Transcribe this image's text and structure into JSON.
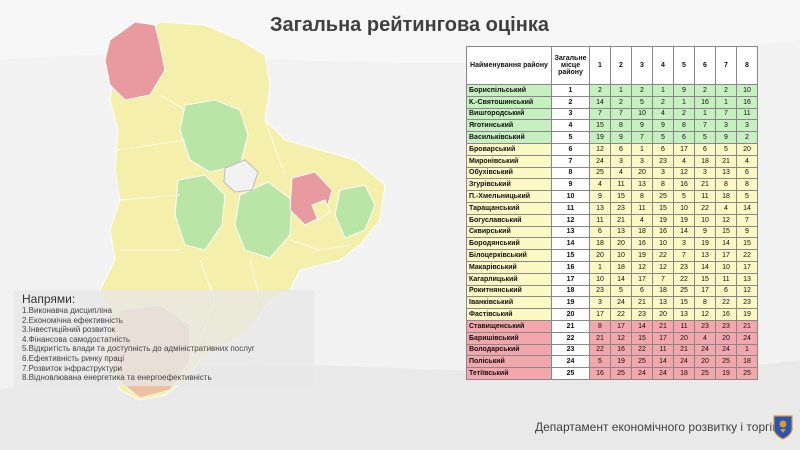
{
  "title": "Загальна рейтингова оцінка",
  "table": {
    "headers": {
      "name": "Найменування району",
      "place": "Загальне місце району",
      "directions": [
        "1",
        "2",
        "3",
        "4",
        "5",
        "6",
        "7",
        "8"
      ]
    },
    "rows": [
      {
        "name": "Бориспільський",
        "place": "1",
        "group": "green",
        "scores": [
          "2",
          "1",
          "2",
          "1",
          "9",
          "2",
          "2",
          "10"
        ]
      },
      {
        "name": "К.-Святошинський",
        "place": "2",
        "group": "green",
        "scores": [
          "14",
          "2",
          "5",
          "2",
          "1",
          "16",
          "1",
          "16"
        ]
      },
      {
        "name": "Вишгородський",
        "place": "3",
        "group": "green",
        "scores": [
          "7",
          "7",
          "10",
          "4",
          "2",
          "1",
          "7",
          "11"
        ]
      },
      {
        "name": "Яготинський",
        "place": "4",
        "group": "green",
        "scores": [
          "15",
          "8",
          "9",
          "9",
          "8",
          "7",
          "3",
          "3"
        ]
      },
      {
        "name": "Васильківський",
        "place": "5",
        "group": "green",
        "scores": [
          "19",
          "9",
          "7",
          "5",
          "6",
          "5",
          "9",
          "2"
        ]
      },
      {
        "name": "Броварський",
        "place": "6",
        "group": "yellow",
        "scores": [
          "12",
          "6",
          "1",
          "6",
          "17",
          "6",
          "5",
          "20"
        ]
      },
      {
        "name": "Миронівський",
        "place": "7",
        "group": "yellow",
        "scores": [
          "24",
          "3",
          "3",
          "23",
          "4",
          "18",
          "21",
          "4"
        ]
      },
      {
        "name": "Обухівський",
        "place": "8",
        "group": "yellow",
        "scores": [
          "25",
          "4",
          "20",
          "3",
          "12",
          "3",
          "13",
          "6"
        ]
      },
      {
        "name": "Згурівський",
        "place": "9",
        "group": "yellow",
        "scores": [
          "4",
          "11",
          "13",
          "8",
          "16",
          "21",
          "8",
          "8"
        ]
      },
      {
        "name": "П.-Хмельницький",
        "place": "10",
        "group": "yellow",
        "scores": [
          "9",
          "15",
          "8",
          "25",
          "5",
          "11",
          "18",
          "5"
        ]
      },
      {
        "name": "Таращанський",
        "place": "11",
        "group": "yellow",
        "scores": [
          "13",
          "23",
          "11",
          "15",
          "10",
          "22",
          "4",
          "14"
        ]
      },
      {
        "name": "Богуславський",
        "place": "12",
        "group": "yellow",
        "scores": [
          "11",
          "21",
          "4",
          "19",
          "19",
          "10",
          "12",
          "7"
        ]
      },
      {
        "name": "Сквирський",
        "place": "13",
        "group": "yellow",
        "scores": [
          "6",
          "13",
          "18",
          "16",
          "14",
          "9",
          "15",
          "9"
        ]
      },
      {
        "name": "Бородянський",
        "place": "14",
        "group": "yellow",
        "scores": [
          "18",
          "20",
          "16",
          "10",
          "3",
          "19",
          "14",
          "15"
        ]
      },
      {
        "name": "Білоцерківський",
        "place": "15",
        "group": "yellow",
        "scores": [
          "20",
          "10",
          "19",
          "22",
          "7",
          "13",
          "17",
          "22"
        ]
      },
      {
        "name": "Макарівський",
        "place": "16",
        "group": "yellow",
        "scores": [
          "1",
          "18",
          "12",
          "12",
          "23",
          "14",
          "10",
          "17"
        ]
      },
      {
        "name": "Кагарлицький",
        "place": "17",
        "group": "yellow",
        "scores": [
          "10",
          "14",
          "17",
          "7",
          "22",
          "15",
          "11",
          "13"
        ]
      },
      {
        "name": "Рокитнянський",
        "place": "18",
        "group": "yellow",
        "scores": [
          "23",
          "5",
          "6",
          "18",
          "25",
          "17",
          "6",
          "12"
        ]
      },
      {
        "name": "Іванківський",
        "place": "19",
        "group": "yellow",
        "scores": [
          "3",
          "24",
          "21",
          "13",
          "15",
          "8",
          "22",
          "23"
        ]
      },
      {
        "name": "Фастівський",
        "place": "20",
        "group": "yellow",
        "scores": [
          "17",
          "22",
          "23",
          "20",
          "13",
          "12",
          "16",
          "19"
        ]
      },
      {
        "name": "Ставищенський",
        "place": "21",
        "group": "red",
        "scores": [
          "8",
          "17",
          "14",
          "21",
          "11",
          "23",
          "23",
          "21"
        ]
      },
      {
        "name": "Баришівський",
        "place": "22",
        "group": "red",
        "scores": [
          "21",
          "12",
          "15",
          "17",
          "20",
          "4",
          "20",
          "24"
        ]
      },
      {
        "name": "Володарський",
        "place": "23",
        "group": "red",
        "scores": [
          "22",
          "16",
          "22",
          "11",
          "21",
          "24",
          "24",
          "1"
        ]
      },
      {
        "name": "Поліський",
        "place": "24",
        "group": "red",
        "scores": [
          "5",
          "19",
          "25",
          "14",
          "24",
          "20",
          "25",
          "18"
        ]
      },
      {
        "name": "Тетіївський",
        "place": "25",
        "group": "red",
        "scores": [
          "16",
          "25",
          "24",
          "24",
          "18",
          "25",
          "19",
          "25"
        ]
      }
    ]
  },
  "legend": {
    "title": "Напрями:",
    "items": [
      "1.Виконавча дисципліна",
      "2.Економічна ефективність",
      "3.Інвестиційний розвиток",
      "4.Фінансова самодостатність",
      "5.Відкритість влади та доступність до адміністративних послуг",
      "6.Ефективність ринку праці",
      "7.Розвиток інфраструктури",
      "8.Відновлювана енергетика та енергоефективність"
    ]
  },
  "footer": "Департамент економічного розвитку і торгівлі",
  "colors": {
    "green": "#c6f0bf",
    "yellow": "#fbf8c4",
    "red": "#f3a7ad",
    "map_yellow": "#f4efaa",
    "map_green": "#b9e6a6",
    "map_red": "#e99a9f"
  }
}
